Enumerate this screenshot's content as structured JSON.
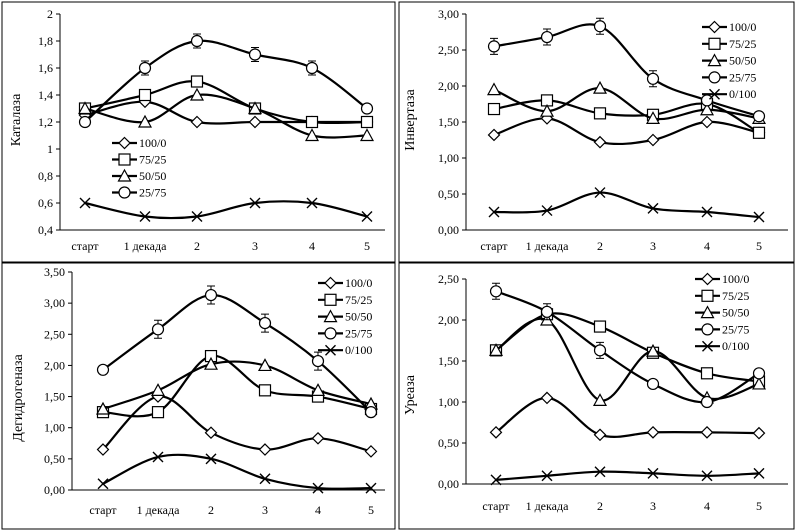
{
  "chart_data": [
    {
      "type": "line",
      "title": "",
      "ylabel": "Каталаза",
      "categories": [
        "старт",
        "1 декада",
        "2",
        "3",
        "4",
        "5"
      ],
      "ylim": [
        0.4,
        2.0
      ],
      "yticks": [
        "0,4",
        "0,6",
        "0,8",
        "1",
        "1,2",
        "1,4",
        "1,6",
        "1,8",
        "2"
      ],
      "legend_position": "bottom-left",
      "series": [
        {
          "name": "100/0",
          "marker": "diamond",
          "values": [
            1.25,
            1.35,
            1.2,
            1.2,
            1.2,
            1.2
          ]
        },
        {
          "name": "75/25",
          "marker": "square",
          "values": [
            1.3,
            1.4,
            1.5,
            1.3,
            1.2,
            1.2
          ]
        },
        {
          "name": "50/50",
          "marker": "triangle",
          "values": [
            1.3,
            1.2,
            1.4,
            1.3,
            1.1,
            1.1
          ]
        },
        {
          "name": "25/75",
          "marker": "circle",
          "values": [
            1.2,
            1.6,
            1.8,
            1.7,
            1.6,
            1.3
          ]
        },
        {
          "name": "",
          "marker": "x",
          "values": [
            0.6,
            0.5,
            0.5,
            0.6,
            0.6,
            0.5
          ]
        }
      ]
    },
    {
      "type": "line",
      "title": "",
      "ylabel": "Инвертаза",
      "categories": [
        "старт",
        "1 декада",
        "2",
        "3",
        "4",
        "5"
      ],
      "ylim": [
        0,
        3.0
      ],
      "yticks": [
        "0,00",
        "0,50",
        "1,00",
        "1,50",
        "2,00",
        "2,50",
        "3,00"
      ],
      "legend_position": "top-right",
      "series": [
        {
          "name": "100/0",
          "marker": "diamond",
          "values": [
            1.32,
            1.55,
            1.22,
            1.25,
            1.5,
            1.35
          ]
        },
        {
          "name": "75/25",
          "marker": "square",
          "values": [
            1.68,
            1.8,
            1.62,
            1.6,
            1.75,
            1.35
          ]
        },
        {
          "name": "50/50",
          "marker": "triangle",
          "values": [
            1.95,
            1.65,
            1.97,
            1.55,
            1.67,
            1.55
          ]
        },
        {
          "name": "25/75",
          "marker": "circle",
          "values": [
            2.55,
            2.68,
            2.83,
            2.1,
            1.8,
            1.58
          ]
        },
        {
          "name": "0/100",
          "marker": "x",
          "values": [
            0.25,
            0.27,
            0.52,
            0.3,
            0.25,
            0.18
          ]
        }
      ]
    },
    {
      "type": "line",
      "title": "",
      "ylabel": "Дегидрогеназа",
      "categories": [
        "старт",
        "1 декада",
        "2",
        "3",
        "4",
        "5"
      ],
      "ylim": [
        0,
        3.5
      ],
      "yticks": [
        "0,00",
        "0,50",
        "1,00",
        "1,50",
        "2,00",
        "2,50",
        "3,00",
        "3,50"
      ],
      "legend_position": "top-right",
      "series": [
        {
          "name": "100/0",
          "marker": "diamond",
          "values": [
            0.65,
            1.5,
            0.92,
            0.65,
            0.83,
            0.62
          ]
        },
        {
          "name": "75/25",
          "marker": "square",
          "values": [
            1.25,
            1.25,
            2.15,
            1.6,
            1.5,
            1.3
          ]
        },
        {
          "name": "50/50",
          "marker": "triangle",
          "values": [
            1.3,
            1.6,
            2.02,
            2.0,
            1.6,
            1.38
          ]
        },
        {
          "name": "25/75",
          "marker": "circle",
          "values": [
            1.93,
            2.58,
            3.13,
            2.68,
            2.07,
            1.25
          ]
        },
        {
          "name": "0/100",
          "marker": "x",
          "values": [
            0.1,
            0.53,
            0.5,
            0.18,
            0.03,
            0.03
          ]
        }
      ]
    },
    {
      "type": "line",
      "title": "",
      "ylabel": "Уреаза",
      "categories": [
        "старт",
        "1 декада",
        "2",
        "3",
        "4",
        "5"
      ],
      "ylim": [
        0,
        2.5
      ],
      "yticks": [
        "0,00",
        "0,50",
        "1,00",
        "1,50",
        "2,00",
        "2,50"
      ],
      "legend_position": "top-right",
      "series": [
        {
          "name": "100/0",
          "marker": "diamond",
          "values": [
            0.63,
            1.05,
            0.6,
            0.63,
            0.63,
            0.62
          ]
        },
        {
          "name": "75/25",
          "marker": "square",
          "values": [
            1.63,
            2.07,
            1.92,
            1.6,
            1.35,
            1.25
          ]
        },
        {
          "name": "50/50",
          "marker": "triangle",
          "values": [
            1.63,
            2.0,
            1.02,
            1.62,
            1.05,
            1.22
          ]
        },
        {
          "name": "25/75",
          "marker": "circle",
          "values": [
            2.35,
            2.1,
            1.63,
            1.22,
            1.0,
            1.35
          ]
        },
        {
          "name": "0/100",
          "marker": "x",
          "values": [
            0.05,
            0.1,
            0.15,
            0.13,
            0.1,
            0.13
          ]
        }
      ]
    }
  ]
}
